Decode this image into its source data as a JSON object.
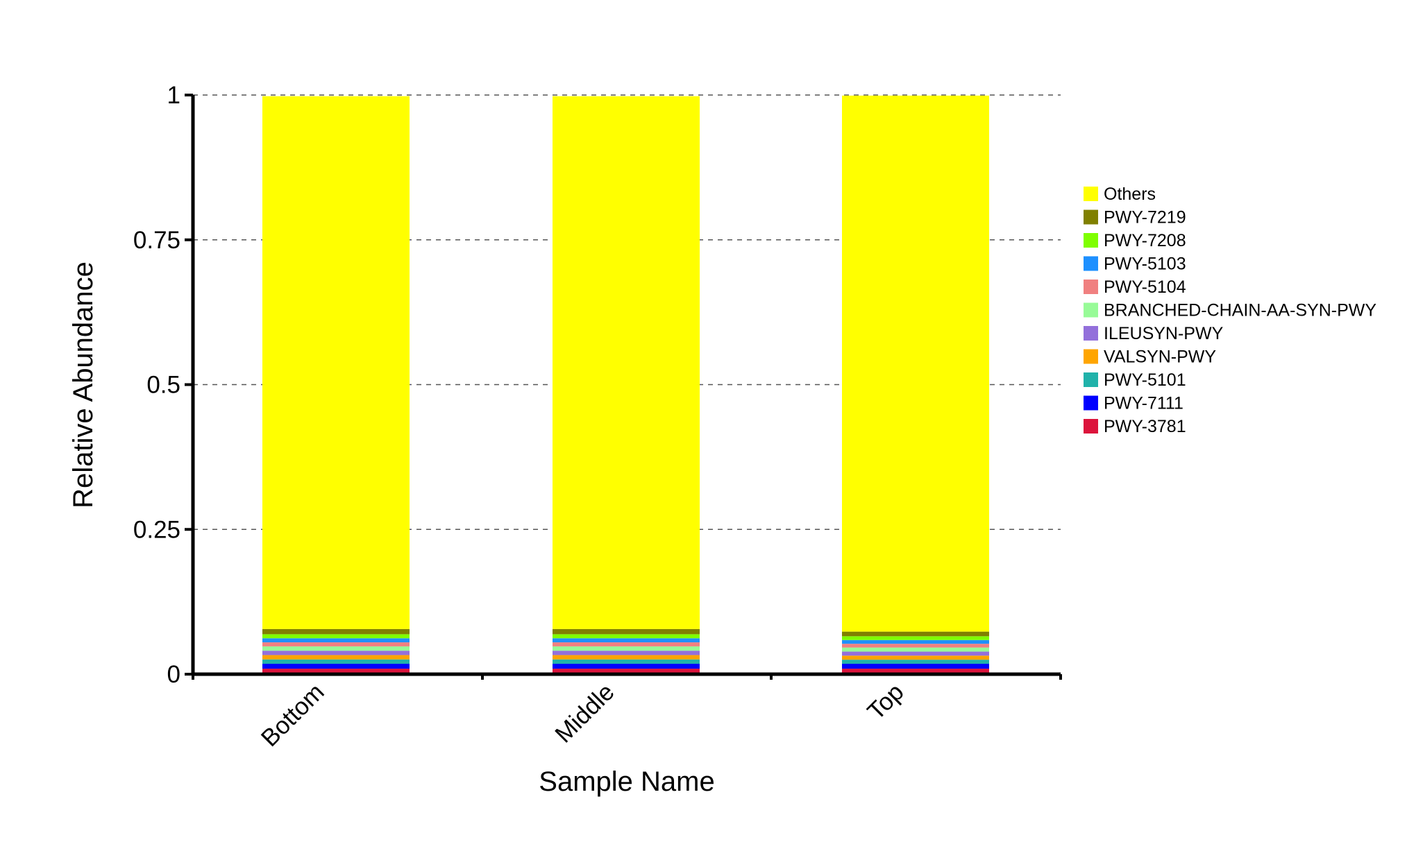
{
  "chart_data": {
    "type": "bar",
    "stacked": true,
    "title": "",
    "xlabel": "Sample Name",
    "ylabel": "Relative Abundance",
    "ylim": [
      0,
      1
    ],
    "yticks": [
      {
        "value": 0,
        "label": "0"
      },
      {
        "value": 0.25,
        "label": "0.25"
      },
      {
        "value": 0.5,
        "label": "0.5"
      },
      {
        "value": 0.75,
        "label": "0.75"
      },
      {
        "value": 1,
        "label": "1"
      }
    ],
    "grid": "horizontal dashed",
    "legend_position": "right",
    "categories": [
      "Bottom",
      "Middle",
      "Top"
    ],
    "series": [
      {
        "name": "PWY-3781",
        "color": "#dc143c",
        "values": [
          0.0095,
          0.0095,
          0.0095
        ]
      },
      {
        "name": "PWY-7111",
        "color": "#0000ff",
        "values": [
          0.0085,
          0.0085,
          0.0085
        ]
      },
      {
        "name": "PWY-5101",
        "color": "#20b2aa",
        "values": [
          0.0075,
          0.0075,
          0.007
        ]
      },
      {
        "name": "VALSYN-PWY",
        "color": "#ffa500",
        "values": [
          0.0075,
          0.0075,
          0.007
        ]
      },
      {
        "name": "ILEUSYN-PWY",
        "color": "#9370db",
        "values": [
          0.0075,
          0.0075,
          0.007
        ]
      },
      {
        "name": "BRANCHED-CHAIN-AA-SYN-PWY",
        "color": "#98fb98",
        "values": [
          0.0075,
          0.0075,
          0.007
        ]
      },
      {
        "name": "PWY-5104",
        "color": "#f08080",
        "values": [
          0.007,
          0.007,
          0.0065
        ]
      },
      {
        "name": "PWY-5103",
        "color": "#1e90ff",
        "values": [
          0.007,
          0.007,
          0.0065
        ]
      },
      {
        "name": "PWY-7208",
        "color": "#7fff00",
        "values": [
          0.007,
          0.007,
          0.0065
        ]
      },
      {
        "name": "PWY-7219",
        "color": "#808000",
        "values": [
          0.009,
          0.009,
          0.008
        ]
      },
      {
        "name": "Others",
        "color": "#ffff00",
        "values": [
          0.92,
          0.92,
          0.9255
        ]
      }
    ],
    "legend_order": [
      "Others",
      "PWY-7219",
      "PWY-7208",
      "PWY-5103",
      "PWY-5104",
      "BRANCHED-CHAIN-AA-SYN-PWY",
      "ILEUSYN-PWY",
      "VALSYN-PWY",
      "PWY-5101",
      "PWY-7111",
      "PWY-3781"
    ]
  }
}
